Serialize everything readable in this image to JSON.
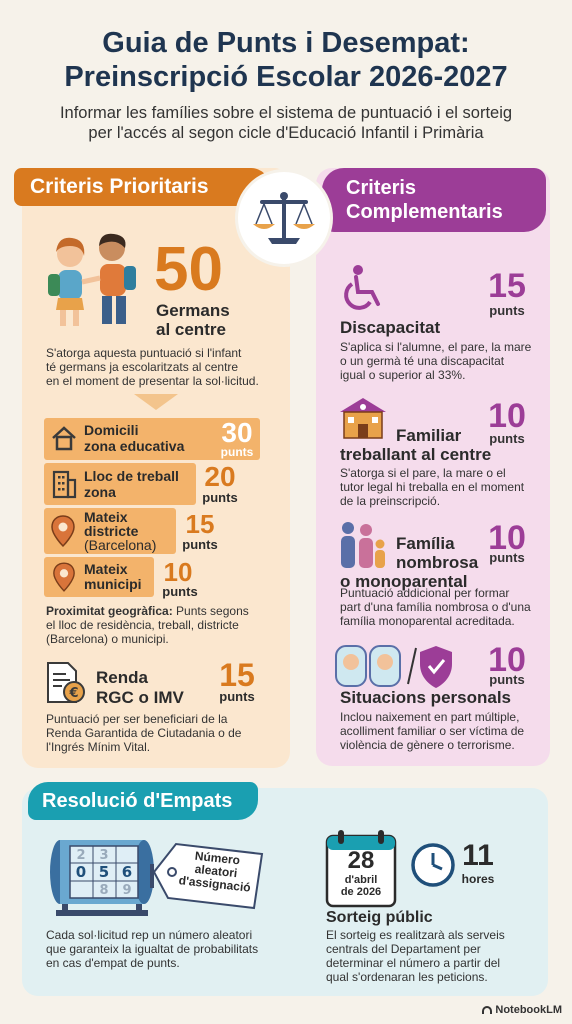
{
  "header": {
    "title_line1": "Guia de Punts i Desempat:",
    "title_line2": "Preinscripció Escolar 2026-2027",
    "subtitle_line1": "Informar les famílies sobre el sistema de puntuació i el sorteig",
    "subtitle_line2": "per l'accés al segon cicle d'Educació Infantil i Primària"
  },
  "left": {
    "banner": "Criteris Prioritaris",
    "siblings": {
      "points": "50",
      "label_line1": "Germans",
      "label_line2": "al centre",
      "desc": [
        "S'atorga aquesta puntuació si l'infant",
        "té germans ja escolaritzats al centre",
        "en el moment de presentar la sol·licitud."
      ]
    },
    "rows": [
      {
        "line1": "Domicili",
        "line2": "zona educativa",
        "points": "30",
        "unit": "punts"
      },
      {
        "line1": "Lloc de treball",
        "line2": "zona",
        "points": "20",
        "unit": "punts"
      },
      {
        "line1": "Mateix",
        "line2": "districte",
        "line3": "(Barcelona)",
        "points": "15",
        "unit": "punts"
      },
      {
        "line1": "Mateix",
        "line2": "municipi",
        "points": "10",
        "unit": "punts"
      }
    ],
    "proximity_bold": "Proximitat geogràfica:",
    "proximity_desc": [
      " Punts segons",
      "el lloc de residència, treball, districte",
      "(Barcelona) o municipi."
    ],
    "income": {
      "label_line1": "Renda",
      "label_line2": "RGC o IMV",
      "points": "15",
      "unit": "punts",
      "desc": [
        "Puntuació per ser beneficiari de la",
        "Renda Garantida de Ciutadania o de",
        "l'Ingrés Mínim Vital."
      ]
    }
  },
  "right": {
    "banner_line1": "Criteris",
    "banner_line2": "Complementaris",
    "items": [
      {
        "title": "Discapacitat",
        "points": "15",
        "unit": "punts",
        "desc": [
          "S'aplica si l'alumne, el pare, la mare",
          "o un germà té una discapacitat",
          "igual o superior al 33%."
        ]
      },
      {
        "title_line1": "Familiar",
        "title_line2": "treballant al centre",
        "points": "10",
        "unit": "punts",
        "desc": [
          "S'atorga si el pare, la mare o el",
          "tutor legal hi treballa en el moment",
          "de la preinscripció."
        ]
      },
      {
        "title_line1": "Família",
        "title_line2": "nombrosa",
        "title_line3": "o monoparental",
        "points": "10",
        "unit": "punts",
        "desc": [
          "Puntuació addicional per formar",
          "part d'una família nombrosa o d'una",
          "família monoparental acreditada."
        ]
      },
      {
        "title": "Situacions personals",
        "points": "10",
        "unit": "punts",
        "desc": [
          "Inclou naixement en part múltiple,",
          "acolliment familiar o ser víctima de",
          "violència de gènere o terrorisme."
        ]
      }
    ]
  },
  "bottom": {
    "banner": "Resolució d'Empats",
    "drum_digits": [
      "2",
      "3",
      "0",
      "5",
      "6",
      "8",
      "9"
    ],
    "tag_lines": [
      "Número",
      "aleatori",
      "d'assignació"
    ],
    "left_desc": [
      "Cada sol·licitud rep un número aleatori",
      "que garanteix la igualtat de probabilitats",
      "en cas d'empat de punts."
    ],
    "calendar_day": "28",
    "calendar_month_line1": "d'abril",
    "calendar_month_line2": "de 2026",
    "hour": "11",
    "hour_unit": "hores",
    "draw_title": "Sorteig públic",
    "draw_desc": [
      "El sorteig es realitzarà als serveis",
      "centrals del Departament per",
      "determinar el número a partir del",
      "qual s'ordenaran les peticions."
    ]
  },
  "footer": {
    "brand": "NotebookLM"
  },
  "colors": {
    "orange": "#d97a1f",
    "purple": "#9c3d97",
    "teal": "#1a9fb1",
    "navy": "#1f3550"
  }
}
